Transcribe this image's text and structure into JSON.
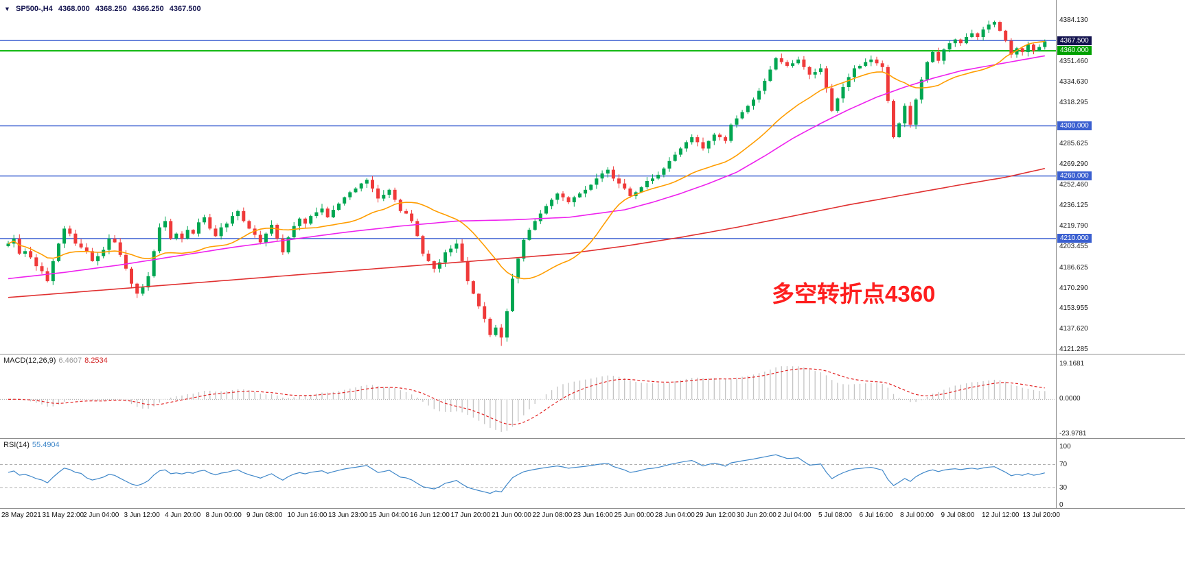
{
  "header": {
    "collapse_icon": "▼",
    "symbol": "SP500-,H4",
    "open": "4368.000",
    "high": "4368.250",
    "low": "4366.250",
    "close": "4367.500"
  },
  "indicators": {
    "macd": {
      "label": "MACD(12,26,9)",
      "value_main": "6.4607",
      "value_signal": "8.2534",
      "axis": {
        "max": "19.1681",
        "zero": "0.0000",
        "min": "-23.9781"
      },
      "colors": {
        "histogram": "#c4c4c4",
        "signal": "#e22222"
      }
    },
    "rsi": {
      "label": "RSI(14)",
      "value": "55.4904",
      "axis": [
        "100",
        "70",
        "30",
        "0"
      ],
      "levels": [
        70,
        30
      ],
      "color": "#3f87c9"
    }
  },
  "price_axis": {
    "tick_labels": [
      "4384.130",
      "4351.460",
      "4334.630",
      "4318.295",
      "4285.625",
      "4269.290",
      "4252.460",
      "4236.125",
      "4219.790",
      "4203.455",
      "4186.625",
      "4170.290",
      "4153.955",
      "4137.620",
      "4121.285"
    ],
    "badges": [
      {
        "text": "4367.500",
        "value": 4367.5,
        "bg": "#12124e",
        "kind": "current-price"
      },
      {
        "text": "4360.000",
        "value": 4360,
        "bg": "#00a100",
        "kind": "level"
      },
      {
        "text": "4300.000",
        "value": 4300,
        "bg": "#3a5fd0",
        "kind": "level"
      },
      {
        "text": "4260.000",
        "value": 4260,
        "bg": "#3a5fd0",
        "kind": "level"
      },
      {
        "text": "4210.000",
        "value": 4210,
        "bg": "#3a5fd0",
        "kind": "level"
      }
    ]
  },
  "time_axis": {
    "labels": [
      "28 May 2021",
      "31 May 22:00",
      "2 Jun 04:00",
      "3 Jun 12:00",
      "4 Jun 20:00",
      "8 Jun 00:00",
      "9 Jun 08:00",
      "10 Jun 16:00",
      "13 Jun 23:00",
      "15 Jun 04:00",
      "16 Jun 12:00",
      "17 Jun 20:00",
      "21 Jun 00:00",
      "22 Jun 08:00",
      "23 Jun 16:00",
      "25 Jun 00:00",
      "28 Jun 04:00",
      "29 Jun 12:00",
      "30 Jun 20:00",
      "2 Jul 04:00",
      "5 Jul 08:00",
      "6 Jul 16:00",
      "8 Jul 00:00",
      "9 Jul 08:00",
      "12 Jul 12:00",
      "13 Jul 20:00"
    ]
  },
  "chart_data": {
    "type": "candlestick",
    "symbol": "SP500-",
    "timeframe": "H4",
    "title": "SP500-,H4",
    "current_ohlc": {
      "open": 4368.0,
      "high": 4368.25,
      "low": 4366.25,
      "close": 4367.5
    },
    "y_range": [
      4121.285,
      4384.13
    ],
    "first_open": 4204,
    "closes": [
      4206,
      4210,
      4198,
      4200,
      4195,
      4188,
      4184,
      4176,
      4192,
      4206,
      4218,
      4214,
      4206,
      4203,
      4200,
      4192,
      4196,
      4201,
      4210,
      4207,
      4197,
      4186,
      4174,
      4166,
      4171,
      4180,
      4200,
      4219,
      4224,
      4210,
      4214,
      4210,
      4217,
      4214,
      4223,
      4227,
      4218,
      4212,
      4219,
      4222,
      4228,
      4232,
      4224,
      4218,
      4213,
      4207,
      4214,
      4221,
      4210,
      4199,
      4211,
      4220,
      4226,
      4222,
      4228,
      4231,
      4234,
      4227,
      4233,
      4238,
      4243,
      4247,
      4250,
      4254,
      4257,
      4250,
      4242,
      4245,
      4249,
      4241,
      4232,
      4230,
      4224,
      4212,
      4198,
      4192,
      4186,
      4191,
      4199,
      4202,
      4206,
      4192,
      4176,
      4166,
      4156,
      4146,
      4133,
      4139,
      4131,
      4152,
      4178,
      4194,
      4209,
      4217,
      4224,
      4230,
      4236,
      4241,
      4246,
      4243,
      4239,
      4243,
      4246,
      4249,
      4253,
      4258,
      4262,
      4265,
      4258,
      4254,
      4250,
      4244,
      4247,
      4251,
      4256,
      4258,
      4261,
      4266,
      4272,
      4277,
      4282,
      4287,
      4291,
      4287,
      4282,
      4288,
      4293,
      4291,
      4288,
      4301,
      4306,
      4311,
      4316,
      4321,
      4328,
      4336,
      4345,
      4354,
      4351,
      4348,
      4350,
      4353,
      4347,
      4341,
      4343,
      4346,
      4330,
      4312,
      4322,
      4331,
      4339,
      4346,
      4348,
      4351,
      4353,
      4350,
      4347,
      4320,
      4291,
      4302,
      4316,
      4301,
      4321,
      4337,
      4351,
      4359,
      4352,
      4361,
      4366,
      4369,
      4366,
      4371,
      4374,
      4371,
      4377,
      4381,
      4383,
      4376,
      4368,
      4357,
      4362,
      4359,
      4365,
      4360,
      4363,
      4367.5
    ],
    "extremes": {
      "high": {
        "index": 176,
        "price": 4384.13
      },
      "low": {
        "index": 88,
        "price": 4124.3
      }
    },
    "colors": {
      "up": "#00a651",
      "down": "#ef3a3a"
    },
    "moving_averages": {
      "fast": {
        "type": "SMA",
        "period": 20,
        "color": "#ff9d00"
      },
      "medium": {
        "type": "smoothed",
        "color": "#ee22ee",
        "anchors": [
          [
            0,
            4178
          ],
          [
            10,
            4183
          ],
          [
            20,
            4189
          ],
          [
            30,
            4196
          ],
          [
            40,
            4203
          ],
          [
            50,
            4209
          ],
          [
            60,
            4215
          ],
          [
            70,
            4220
          ],
          [
            80,
            4224
          ],
          [
            90,
            4225
          ],
          [
            100,
            4227
          ],
          [
            110,
            4233
          ],
          [
            115,
            4239
          ],
          [
            120,
            4246
          ],
          [
            125,
            4254
          ],
          [
            130,
            4263
          ],
          [
            135,
            4276
          ],
          [
            140,
            4290
          ],
          [
            145,
            4302
          ],
          [
            150,
            4313
          ],
          [
            155,
            4323
          ],
          [
            160,
            4331
          ],
          [
            165,
            4338
          ],
          [
            170,
            4344
          ],
          [
            175,
            4348
          ],
          [
            180,
            4352
          ],
          [
            185,
            4356
          ]
        ]
      },
      "slow": {
        "type": "smoothed",
        "color": "#e03030",
        "anchors": [
          [
            0,
            4163
          ],
          [
            20,
            4170
          ],
          [
            40,
            4177
          ],
          [
            60,
            4184
          ],
          [
            80,
            4191
          ],
          [
            100,
            4198
          ],
          [
            110,
            4204
          ],
          [
            120,
            4211
          ],
          [
            130,
            4219
          ],
          [
            140,
            4228
          ],
          [
            150,
            4237
          ],
          [
            160,
            4245
          ],
          [
            170,
            4253
          ],
          [
            178,
            4259
          ],
          [
            185,
            4266
          ]
        ]
      }
    },
    "levels": [
      {
        "value": 4368.25,
        "color": "#3a5fd0",
        "width": 1.4
      },
      {
        "value": 4360,
        "color": "#00b300",
        "width": 2
      },
      {
        "value": 4300,
        "color": "#3a5fd0",
        "width": 1.4
      },
      {
        "value": 4260,
        "color": "#3a5fd0",
        "width": 1.4
      },
      {
        "value": 4210,
        "color": "#3a5fd0",
        "width": 1.4
      }
    ],
    "annotation": {
      "text": "多空转折点4360",
      "color": "#fe1e1e"
    }
  }
}
